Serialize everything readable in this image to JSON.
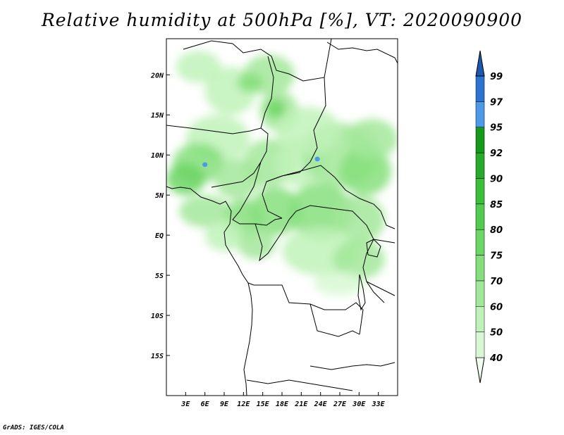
{
  "title": "Relative humidity at 500hPa [%], VT: 2020090900",
  "credit": "GrADS: IGES/COLA",
  "map": {
    "lon_range": [
      0,
      36
    ],
    "lat_range": [
      -20,
      24.5
    ],
    "lon_ticks": [
      {
        "value": 3,
        "label": "3E"
      },
      {
        "value": 6,
        "label": "6E"
      },
      {
        "value": 9,
        "label": "9E"
      },
      {
        "value": 12,
        "label": "12E"
      },
      {
        "value": 15,
        "label": "15E"
      },
      {
        "value": 18,
        "label": "18E"
      },
      {
        "value": 21,
        "label": "21E"
      },
      {
        "value": 24,
        "label": "24E"
      },
      {
        "value": 27,
        "label": "27E"
      },
      {
        "value": 30,
        "label": "30E"
      },
      {
        "value": 33,
        "label": "33E"
      }
    ],
    "lat_ticks": [
      {
        "value": 20,
        "label": "20N"
      },
      {
        "value": 15,
        "label": "15N"
      },
      {
        "value": 10,
        "label": "10N"
      },
      {
        "value": 5,
        "label": "5N"
      },
      {
        "value": 0,
        "label": "EQ"
      },
      {
        "value": -5,
        "label": "5S"
      },
      {
        "value": -10,
        "label": "10S"
      },
      {
        "value": -15,
        "label": "15S"
      }
    ]
  },
  "colorbar": {
    "levels": [
      "40",
      "50",
      "60",
      "70",
      "75",
      "80",
      "85",
      "90",
      "92",
      "95",
      "97",
      "99"
    ],
    "colors": [
      "#f0fff0",
      "#d8f8d4",
      "#bff2b8",
      "#a2e89a",
      "#86df7c",
      "#6cd664",
      "#52cc4e",
      "#3cbf3a",
      "#28ab2a",
      "#169a1a",
      "#4d9be8",
      "#2d74d0",
      "#1c58b0"
    ]
  },
  "humidity_patches": [
    {
      "lon": 5,
      "lat": 21,
      "rx": 3.5,
      "ry": 2,
      "level": 2
    },
    {
      "lon": 10,
      "lat": 18,
      "rx": 4,
      "ry": 3,
      "level": 2
    },
    {
      "lon": 16,
      "lat": 20,
      "rx": 4,
      "ry": 2.5,
      "level": 3
    },
    {
      "lon": 13,
      "lat": 19,
      "rx": 2,
      "ry": 1.2,
      "level": 4
    },
    {
      "lon": 17.5,
      "lat": 15.5,
      "rx": 3,
      "ry": 2.5,
      "level": 3
    },
    {
      "lon": 17,
      "lat": 15.8,
      "rx": 1.5,
      "ry": 1.2,
      "level": 5
    },
    {
      "lon": 8,
      "lat": 12,
      "rx": 5,
      "ry": 3,
      "level": 2
    },
    {
      "lon": 5,
      "lat": 9,
      "rx": 4,
      "ry": 2.5,
      "level": 4
    },
    {
      "lon": 3,
      "lat": 7,
      "rx": 3,
      "ry": 2,
      "level": 5
    },
    {
      "lon": 11,
      "lat": 7,
      "rx": 3.5,
      "ry": 2.5,
      "level": 3
    },
    {
      "lon": 16,
      "lat": 9,
      "rx": 4,
      "ry": 3,
      "level": 3
    },
    {
      "lon": 21,
      "lat": 9,
      "rx": 4,
      "ry": 3,
      "level": 2
    },
    {
      "lon": 27,
      "lat": 10,
      "rx": 6,
      "ry": 4,
      "level": 3
    },
    {
      "lon": 31,
      "lat": 8,
      "rx": 4,
      "ry": 3,
      "level": 4
    },
    {
      "lon": 22,
      "lat": 13,
      "rx": 5,
      "ry": 3,
      "level": 2
    },
    {
      "lon": 32,
      "lat": 12,
      "rx": 4,
      "ry": 2.5,
      "level": 3
    },
    {
      "lon": 6,
      "lat": 3,
      "rx": 4,
      "ry": 2,
      "level": 3
    },
    {
      "lon": 12,
      "lat": 2,
      "rx": 3,
      "ry": 2.5,
      "level": 4
    },
    {
      "lon": 17,
      "lat": 3,
      "rx": 4,
      "ry": 3,
      "level": 4
    },
    {
      "lon": 24,
      "lat": 3,
      "rx": 5,
      "ry": 3.5,
      "level": 4
    },
    {
      "lon": 30,
      "lat": 2,
      "rx": 4,
      "ry": 3,
      "level": 3
    },
    {
      "lon": 14,
      "lat": -1,
      "rx": 3,
      "ry": 2,
      "level": 3
    },
    {
      "lon": 24,
      "lat": -2,
      "rx": 6,
      "ry": 3,
      "level": 2
    },
    {
      "lon": 30,
      "lat": -3,
      "rx": 4,
      "ry": 2.5,
      "level": 3
    },
    {
      "lon": 27,
      "lat": -6,
      "rx": 4,
      "ry": 1.5,
      "level": 1
    },
    {
      "lon": 9,
      "lat": 0,
      "rx": 3,
      "ry": 2,
      "level": 2
    },
    {
      "lon": 6,
      "lat": 8.8,
      "rx": 0.4,
      "ry": 0.3,
      "level": 10
    },
    {
      "lon": 23.5,
      "lat": 9.5,
      "rx": 0.4,
      "ry": 0.3,
      "level": 10
    }
  ]
}
